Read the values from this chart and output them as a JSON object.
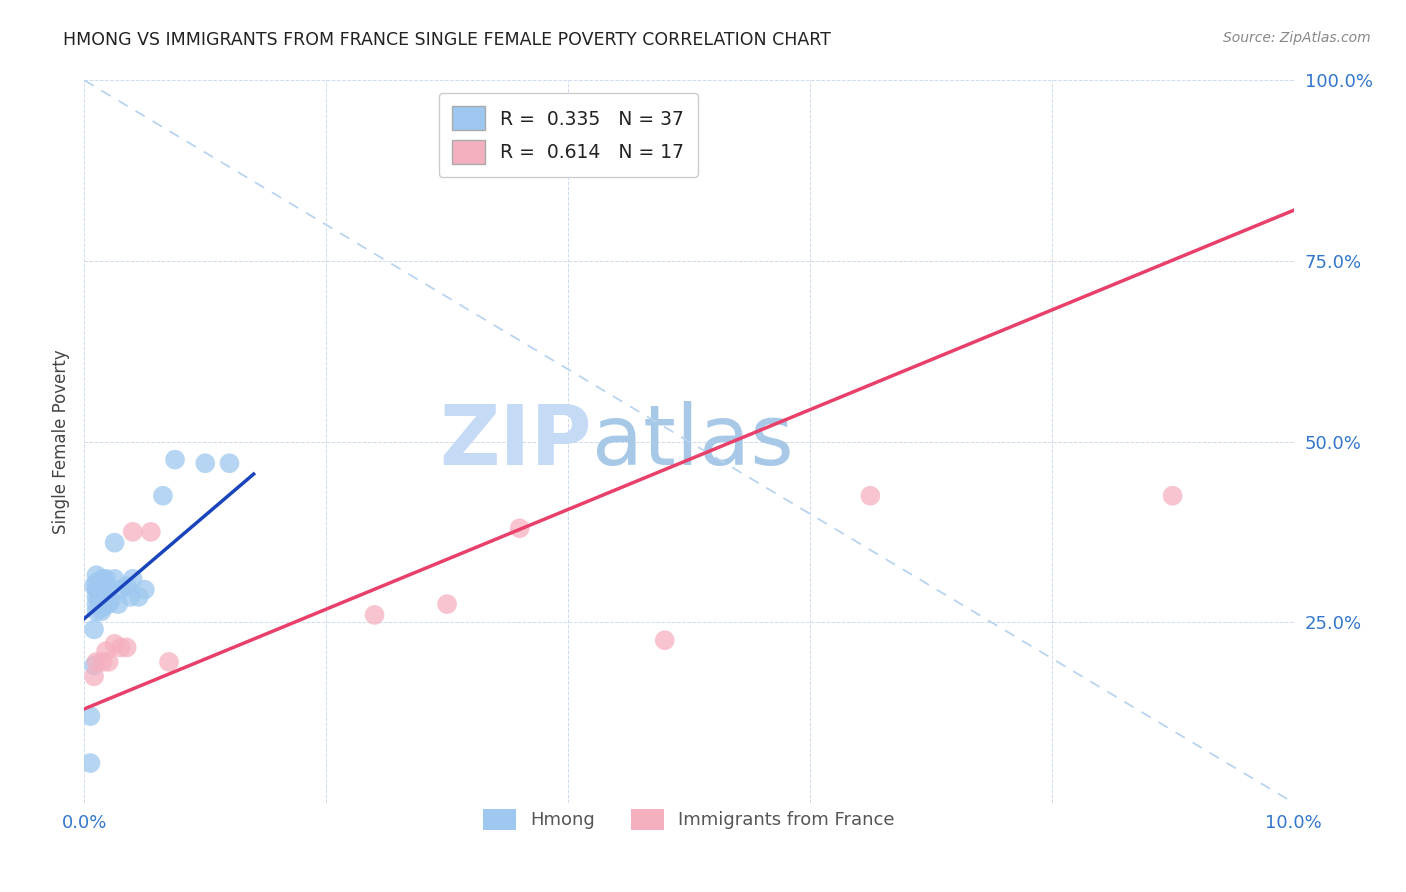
{
  "title": "HMONG VS IMMIGRANTS FROM FRANCE SINGLE FEMALE POVERTY CORRELATION CHART",
  "source": "Source: ZipAtlas.com",
  "ylabel": "Single Female Poverty",
  "xlim": [
    0.0,
    0.1
  ],
  "ylim": [
    0.0,
    1.0
  ],
  "ytick_values": [
    0.0,
    0.25,
    0.5,
    0.75,
    1.0
  ],
  "ytick_labels": [
    "",
    "25.0%",
    "50.0%",
    "75.0%",
    "100.0%"
  ],
  "xtick_values": [
    0.0,
    0.02,
    0.04,
    0.06,
    0.08,
    0.1
  ],
  "xtick_labels": [
    "0.0%",
    "",
    "",
    "",
    "",
    "10.0%"
  ],
  "hmong_R": 0.335,
  "hmong_N": 37,
  "france_R": 0.614,
  "france_N": 17,
  "hmong_color": "#9ec8f0",
  "france_color": "#f5b0c0",
  "hmong_line_color": "#1a44bb",
  "france_line_color": "#e8406a",
  "diagonal_color": "#b8d4f0",
  "watermark_zip": "ZIP",
  "watermark_atlas": "atlas",
  "watermark_color_zip": "#b8d4f2",
  "watermark_color_atlas": "#a0c4e8",
  "hmong_x": [
    0.0005,
    0.0005,
    0.0008,
    0.0008,
    0.0008,
    0.001,
    0.001,
    0.001,
    0.001,
    0.001,
    0.001,
    0.0012,
    0.0012,
    0.0014,
    0.0015,
    0.0015,
    0.0015,
    0.0015,
    0.0016,
    0.0018,
    0.0018,
    0.002,
    0.002,
    0.0022,
    0.0025,
    0.0025,
    0.0028,
    0.003,
    0.0035,
    0.0038,
    0.004,
    0.0045,
    0.005,
    0.0065,
    0.0075,
    0.01,
    0.012
  ],
  "hmong_y": [
    0.055,
    0.12,
    0.19,
    0.24,
    0.3,
    0.265,
    0.285,
    0.295,
    0.305,
    0.315,
    0.275,
    0.285,
    0.295,
    0.265,
    0.27,
    0.275,
    0.29,
    0.31,
    0.285,
    0.275,
    0.31,
    0.275,
    0.295,
    0.28,
    0.31,
    0.36,
    0.275,
    0.295,
    0.3,
    0.285,
    0.31,
    0.285,
    0.295,
    0.425,
    0.475,
    0.47,
    0.47
  ],
  "france_x": [
    0.0008,
    0.001,
    0.0015,
    0.0018,
    0.002,
    0.0025,
    0.003,
    0.0035,
    0.004,
    0.0055,
    0.007,
    0.024,
    0.03,
    0.036,
    0.048,
    0.065,
    0.09
  ],
  "france_y": [
    0.175,
    0.195,
    0.195,
    0.21,
    0.195,
    0.22,
    0.215,
    0.215,
    0.375,
    0.375,
    0.195,
    0.26,
    0.275,
    0.38,
    0.225,
    0.425,
    0.425
  ],
  "hmong_line_x": [
    0.0,
    0.014
  ],
  "hmong_line_y": [
    0.255,
    0.455
  ],
  "france_line_x": [
    0.0,
    0.1
  ],
  "france_line_y": [
    0.13,
    0.82
  ]
}
